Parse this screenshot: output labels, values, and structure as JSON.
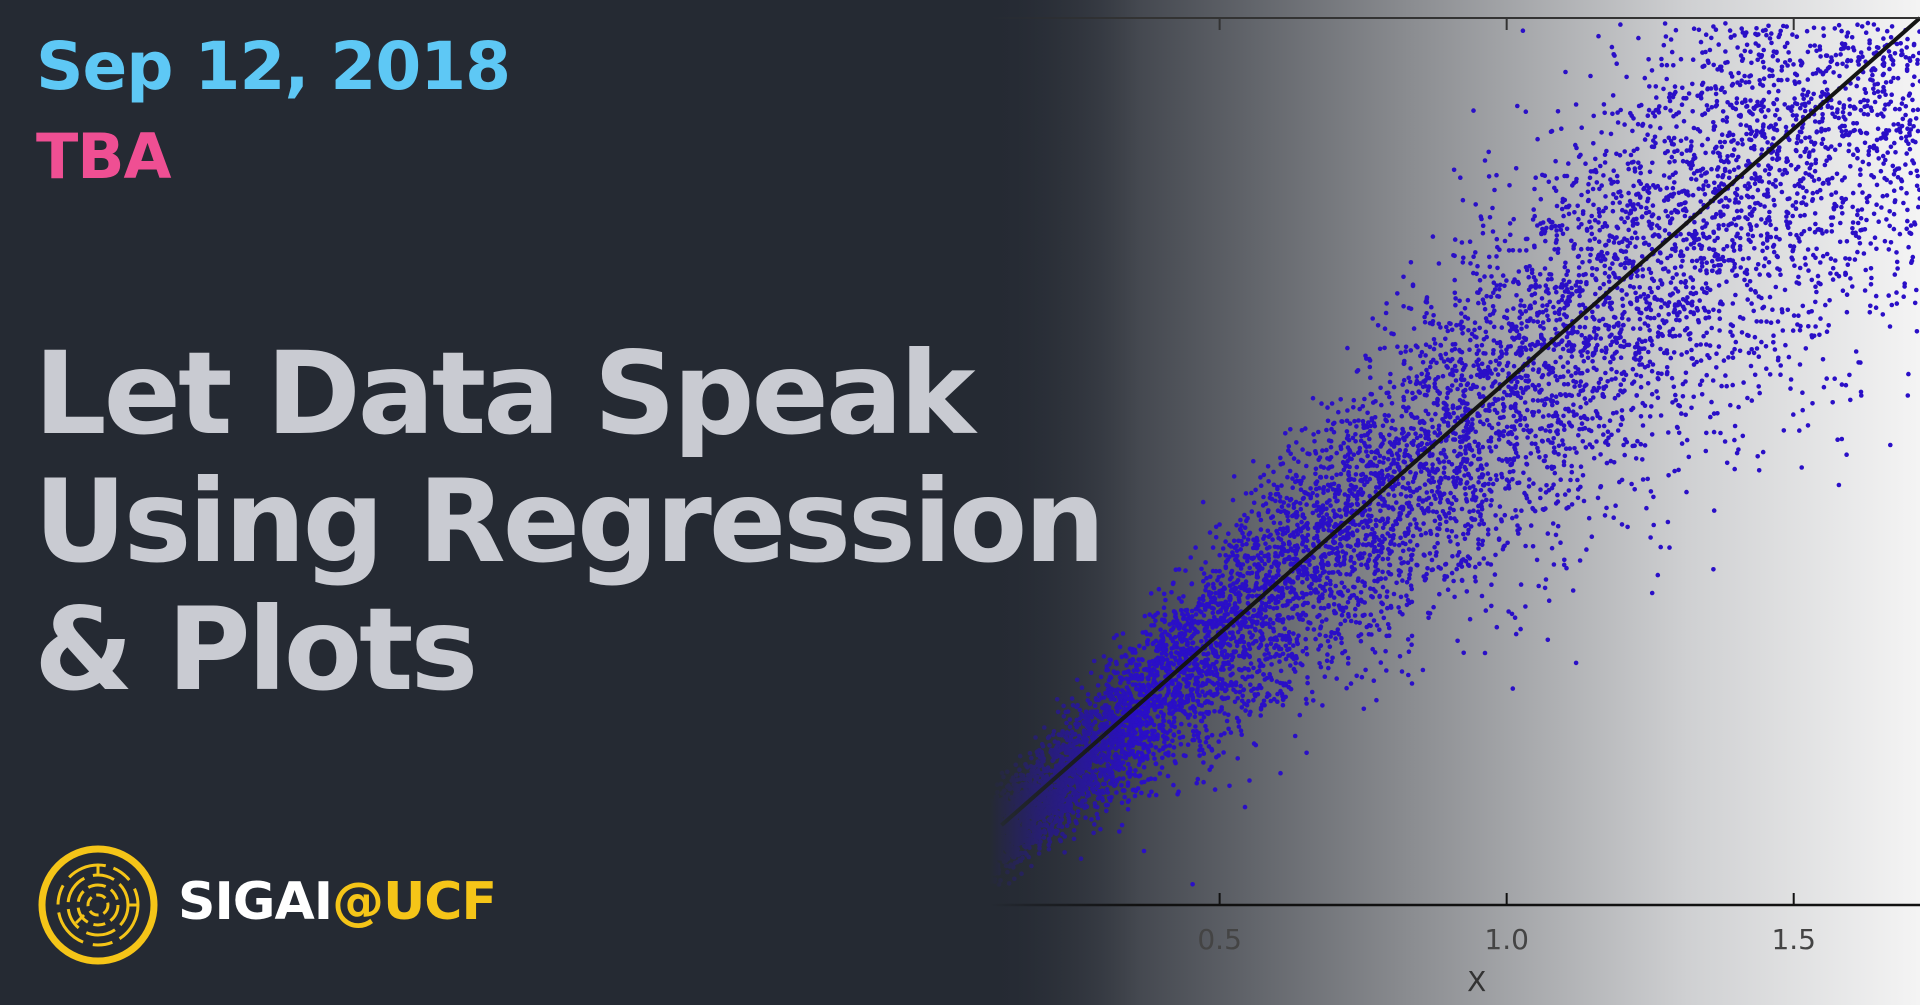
{
  "event": {
    "date": "Sep 12, 2018",
    "location": "TBA",
    "title_lines": [
      "Let Data Speak",
      "Using Regression",
      "& Plots"
    ]
  },
  "brand": {
    "name": "SIGAI",
    "suffix": "@UCF",
    "logo_icon": "circuit-circle-logo-icon"
  },
  "colors": {
    "background": "#252a33",
    "date": "#5ec8f5",
    "location": "#ef4f93",
    "title": "#c9cbd2",
    "brand_accent": "#f5c518",
    "points": "#2a0fc7"
  },
  "chart_data": {
    "type": "scatter",
    "xlabel": "X",
    "ylabel": "",
    "xlim": [
      0.1,
      1.72
    ],
    "ylim": [
      0.0,
      1.0
    ],
    "x_ticks": [
      0.5,
      1.0,
      1.5
    ],
    "x_tick_labels": [
      "0.5",
      "1.0",
      "1.5"
    ],
    "point_count": 9000,
    "regression_line": {
      "x": [
        0.12,
        1.72
      ],
      "y": [
        0.09,
        1.0
      ]
    }
  }
}
